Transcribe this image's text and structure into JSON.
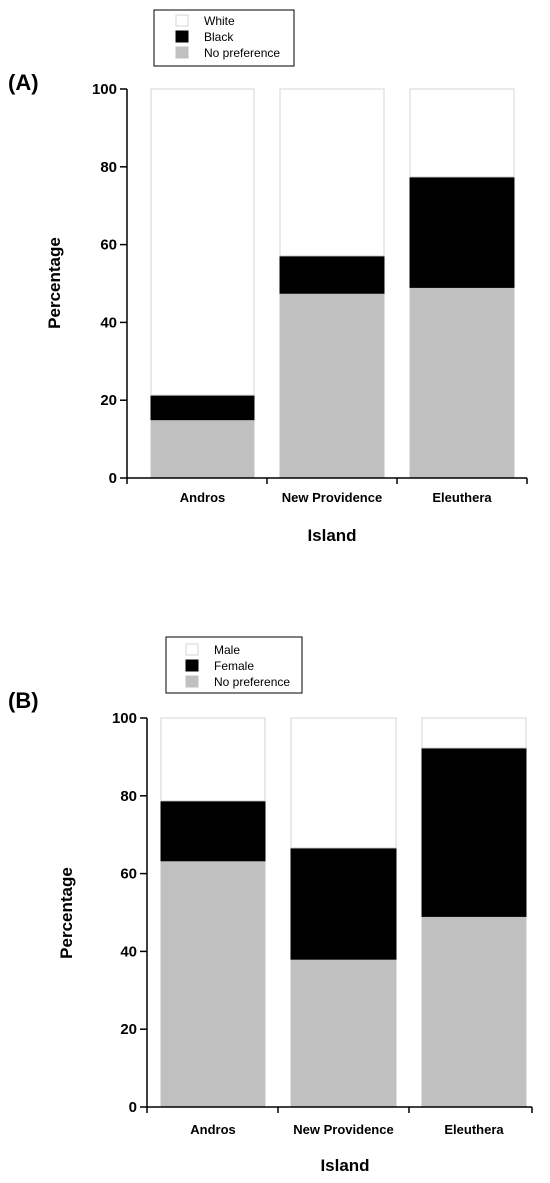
{
  "chart_data": [
    {
      "type": "bar",
      "stacked": true,
      "panel_label": "(A)",
      "categories": [
        "Andros",
        "New Providence",
        "Eleuthera"
      ],
      "xlabel": "Island",
      "ylabel": "Percentage",
      "ylim": [
        0,
        100
      ],
      "yticks": [
        0,
        20,
        40,
        60,
        80,
        100
      ],
      "grid": false,
      "legend_position": "top-left",
      "series": [
        {
          "name": "No preference",
          "color": "#c0c0c0",
          "values": [
            15,
            47.5,
            49
          ]
        },
        {
          "name": "Black",
          "color": "#000000",
          "values": [
            6.3,
            9.6,
            28.4
          ]
        },
        {
          "name": "White",
          "color": "#ffffff",
          "values": [
            78.7,
            42.9,
            22.6
          ]
        }
      ],
      "legend_order": [
        "White",
        "Black",
        "No preference"
      ]
    },
    {
      "type": "bar",
      "stacked": true,
      "panel_label": "(B)",
      "categories": [
        "Andros",
        "New Providence",
        "Eleuthera"
      ],
      "xlabel": "Island",
      "ylabel": "Percentage",
      "ylim": [
        0,
        100
      ],
      "yticks": [
        0,
        20,
        40,
        60,
        80,
        100
      ],
      "grid": false,
      "legend_position": "top-left",
      "series": [
        {
          "name": "No preference",
          "color": "#c0c0c0",
          "values": [
            63.3,
            38,
            49
          ]
        },
        {
          "name": "Female",
          "color": "#000000",
          "values": [
            15.4,
            28.6,
            43.3
          ]
        },
        {
          "name": "Male",
          "color": "#ffffff",
          "values": [
            21.3,
            33.4,
            7.7
          ]
        }
      ],
      "legend_order": [
        "Male",
        "Female",
        "No preference"
      ]
    }
  ]
}
